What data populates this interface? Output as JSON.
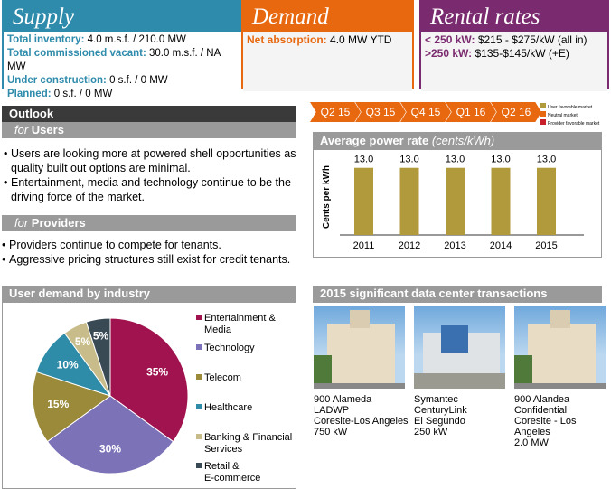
{
  "supply": {
    "title": "Supply",
    "rows": [
      {
        "label": "Total inventory:",
        "value": "4.0 m.s.f. / 210.0 MW"
      },
      {
        "label": "Total commissioned vacant:",
        "value": "30.0 m.s.f. / NA MW"
      },
      {
        "label": "Under construction:",
        "value": "0 s.f. / 0 MW"
      },
      {
        "label": "Planned:",
        "value": "0 s.f. / 0 MW"
      }
    ]
  },
  "demand": {
    "title": "Demand",
    "rows": [
      {
        "label": "Net absorption:",
        "value": "4.0 MW YTD"
      }
    ]
  },
  "rental": {
    "title": "Rental rates",
    "rows": [
      {
        "label": "< 250 kW:",
        "value": "$215 - $275/kW (all in)"
      },
      {
        "label": ">250 kW:",
        "value": "$135-$145/kW (+E)"
      }
    ]
  },
  "outlook": {
    "title": "Outlook",
    "users_for": "for",
    "users": "Users",
    "user_bullets": [
      "Users are looking more at powered shell opportunities as quality built out options are minimal.",
      "Entertainment, media and technology continue to be the driving force of the market."
    ],
    "providers_for": "for",
    "providers": "Providers",
    "provider_bullets": [
      "Providers continue to compete for tenants.",
      "Aggressive pricing structures still exist for credit tenants."
    ]
  },
  "timeline": {
    "quarters": [
      "Q2 15",
      "Q3 15",
      "Q4 15",
      "Q1 16",
      "Q2 16"
    ],
    "legend": [
      {
        "label": "User favorable market",
        "color": "#b09a3c"
      },
      {
        "label": "Neutral market",
        "color": "#e8680f"
      },
      {
        "label": "Provider favorable market",
        "color": "#c8202a"
      }
    ]
  },
  "chart_data": [
    {
      "type": "bar",
      "title": "Average power rate",
      "title_units": "(cents/kWh)",
      "ylabel": "Cents per kWh",
      "categories": [
        "2011",
        "2012",
        "2013",
        "2014",
        "2015"
      ],
      "values": [
        13.0,
        13.0,
        13.0,
        13.0,
        13.0
      ],
      "labels": [
        "13.0",
        "13.0",
        "13.0",
        "13.0",
        "13.0"
      ],
      "color": "#b09a3c",
      "ylim": [
        0,
        14
      ]
    },
    {
      "type": "pie",
      "title": "User demand by industry",
      "categories": [
        "Entertainment & Media",
        "Technology",
        "Telecom",
        "Healthcare",
        "Banking & Financial Services",
        "Retail & E-commerce"
      ],
      "values": [
        35,
        30,
        15,
        10,
        5,
        5
      ],
      "labels": [
        "35%",
        "30%",
        "15%",
        "10%",
        "5%",
        "5%"
      ],
      "colors": [
        "#a0134f",
        "#7b72b8",
        "#9a8a3a",
        "#2e8ca8",
        "#c8bd8a",
        "#3a4a55"
      ]
    }
  ],
  "transactions": {
    "title": "2015 significant data center transactions",
    "items": [
      {
        "lines": [
          "900 Alameda",
          "LADWP",
          "Coresite-Los Angeles",
          "750 kW"
        ]
      },
      {
        "lines": [
          "Symantec",
          "CenturyLink",
          "El Segundo",
          "250 kW"
        ]
      },
      {
        "lines": [
          "900 Alandea",
          "Confidential",
          "Coresite - Los Angeles",
          "2.0 MW"
        ]
      }
    ]
  }
}
